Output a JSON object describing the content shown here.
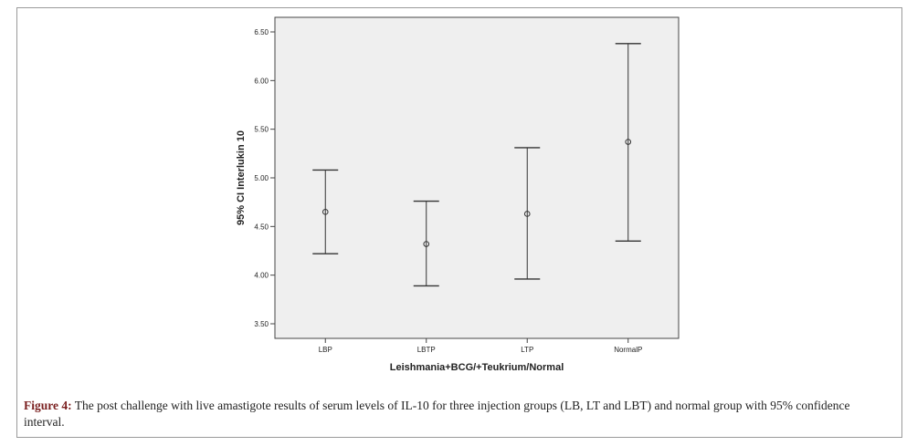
{
  "chart_data": {
    "type": "errorbar",
    "categories": [
      "LBP",
      "LBTP",
      "LTP",
      "NormalP"
    ],
    "mean": [
      4.65,
      4.32,
      4.63,
      5.37
    ],
    "lower": [
      4.22,
      3.89,
      3.96,
      4.35
    ],
    "upper": [
      5.08,
      4.76,
      5.31,
      6.38
    ],
    "yticks": [
      "3.50",
      "4.00",
      "4.50",
      "5.00",
      "5.50",
      "6.00",
      "6.50"
    ],
    "ytick_values": [
      3.5,
      4.0,
      4.5,
      5.0,
      5.5,
      6.0,
      6.5
    ],
    "ylim": [
      3.35,
      6.65
    ],
    "xlabel": "Leishmania+BCG/+Teukrium/Normal",
    "ylabel": "95% CI Interlukin 10",
    "colors": {
      "plot_background": "#efefef",
      "marks": "#333333"
    }
  },
  "caption": {
    "label": "Figure 4:",
    "text": " The post challenge with live amastigote results of serum levels of IL-10 for three injection groups (LB, LT and LBT) and normal group with 95% confidence interval."
  }
}
